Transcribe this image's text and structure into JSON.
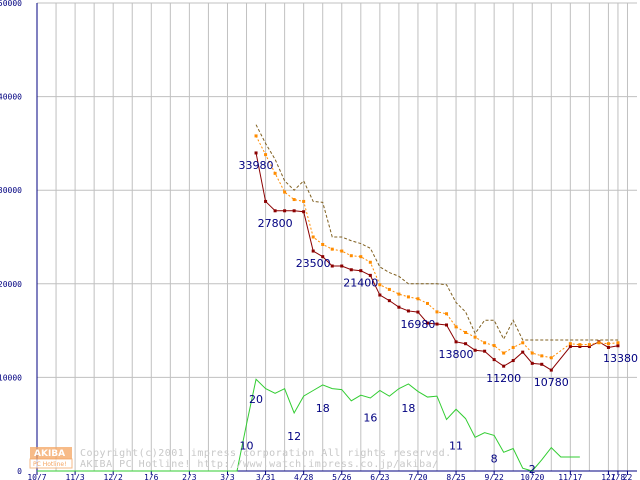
{
  "chart_data": {
    "type": "line",
    "ylim": [
      0,
      50000
    ],
    "yticks": [
      0,
      10000,
      20000,
      30000,
      40000,
      50000
    ],
    "ytick_labels": [
      "0",
      "10000",
      "20000",
      "30000",
      "40000",
      "50000"
    ],
    "xlim": [
      0,
      63
    ],
    "xticks": [
      0,
      4,
      8,
      12,
      16,
      20,
      24,
      28,
      32,
      36,
      40,
      44,
      48,
      52,
      56,
      60,
      61,
      62
    ],
    "xtick_labels": [
      "10/7",
      "11/3",
      "12/2",
      "1/6",
      "2/3",
      "3/3",
      "3/31",
      "4/28",
      "5/26",
      "6/23",
      "7/20",
      "8/25",
      "9/22",
      "10/20",
      "11/17",
      "12/",
      "1/8",
      "22"
    ],
    "grid": true,
    "series": [
      {
        "color": "#8b0000",
        "style": "solid-markers",
        "points": [
          [
            23,
            33980
          ],
          [
            24,
            28800
          ],
          [
            25,
            27800
          ],
          [
            26,
            27800
          ],
          [
            27,
            27800
          ],
          [
            28,
            27700
          ],
          [
            29,
            23500
          ],
          [
            30,
            22900
          ],
          [
            31,
            21900
          ],
          [
            32,
            21900
          ],
          [
            33,
            21500
          ],
          [
            34,
            21400
          ],
          [
            35,
            20900
          ],
          [
            36,
            18800
          ],
          [
            37,
            18200
          ],
          [
            38,
            17500
          ],
          [
            39,
            17100
          ],
          [
            40,
            16980
          ],
          [
            41,
            15800
          ],
          [
            42,
            15700
          ],
          [
            43,
            15600
          ],
          [
            44,
            13800
          ],
          [
            45,
            13600
          ],
          [
            46,
            12900
          ],
          [
            47,
            12800
          ],
          [
            48,
            11900
          ],
          [
            49,
            11200
          ],
          [
            50,
            11800
          ],
          [
            51,
            12700
          ],
          [
            52,
            11500
          ],
          [
            53,
            11400
          ],
          [
            54,
            10780
          ],
          [
            56,
            13300
          ],
          [
            57,
            13300
          ],
          [
            58,
            13300
          ],
          [
            59,
            13800
          ],
          [
            60,
            13200
          ],
          [
            61,
            13380
          ]
        ]
      },
      {
        "color": "#ff8c00",
        "style": "dotted-markers",
        "points": [
          [
            23,
            35800
          ],
          [
            24,
            33800
          ],
          [
            25,
            31800
          ],
          [
            26,
            29800
          ],
          [
            27,
            29000
          ],
          [
            28,
            28800
          ],
          [
            29,
            25000
          ],
          [
            30,
            24200
          ],
          [
            31,
            23700
          ],
          [
            32,
            23500
          ],
          [
            33,
            23000
          ],
          [
            34,
            22900
          ],
          [
            35,
            22300
          ],
          [
            36,
            19900
          ],
          [
            37,
            19400
          ],
          [
            38,
            18900
          ],
          [
            39,
            18600
          ],
          [
            40,
            18400
          ],
          [
            41,
            17900
          ],
          [
            42,
            17000
          ],
          [
            43,
            16800
          ],
          [
            44,
            15400
          ],
          [
            45,
            14800
          ],
          [
            46,
            14300
          ],
          [
            47,
            13700
          ],
          [
            48,
            13400
          ],
          [
            49,
            12600
          ],
          [
            50,
            13200
          ],
          [
            51,
            13700
          ],
          [
            52,
            12600
          ],
          [
            53,
            12300
          ],
          [
            54,
            12100
          ],
          [
            56,
            13600
          ],
          [
            57,
            13500
          ],
          [
            58,
            13500
          ],
          [
            59,
            13700
          ],
          [
            60,
            13600
          ],
          [
            61,
            13700
          ]
        ]
      },
      {
        "color": "#806020",
        "style": "dashed",
        "points": [
          [
            23,
            37000
          ],
          [
            24,
            35000
          ],
          [
            25,
            33300
          ],
          [
            26,
            31000
          ],
          [
            27,
            30000
          ],
          [
            28,
            31000
          ],
          [
            29,
            28800
          ],
          [
            30,
            28700
          ],
          [
            31,
            25000
          ],
          [
            32,
            25000
          ],
          [
            33,
            24600
          ],
          [
            34,
            24300
          ],
          [
            35,
            23800
          ],
          [
            36,
            21800
          ],
          [
            37,
            21200
          ],
          [
            38,
            20800
          ],
          [
            39,
            20000
          ],
          [
            40,
            20000
          ],
          [
            41,
            20000
          ],
          [
            42,
            20000
          ],
          [
            43,
            19900
          ],
          [
            44,
            18000
          ],
          [
            45,
            17000
          ],
          [
            46,
            14700
          ],
          [
            47,
            16100
          ],
          [
            48,
            16100
          ],
          [
            49,
            14100
          ],
          [
            50,
            16100
          ],
          [
            51,
            14000
          ],
          [
            52,
            14000
          ],
          [
            53,
            14000
          ],
          [
            54,
            14000
          ],
          [
            56,
            14000
          ],
          [
            57,
            14000
          ],
          [
            58,
            14000
          ],
          [
            59,
            14000
          ],
          [
            60,
            14000
          ],
          [
            61,
            14000
          ]
        ]
      },
      {
        "color": "#32cd32",
        "style": "solid",
        "points": [
          [
            0,
            0
          ],
          [
            21,
            0
          ],
          [
            22,
            5000
          ],
          [
            23,
            9800
          ],
          [
            24,
            8800
          ],
          [
            25,
            8300
          ],
          [
            26,
            8800
          ],
          [
            27,
            6200
          ],
          [
            28,
            8000
          ],
          [
            29,
            8600
          ],
          [
            30,
            9200
          ],
          [
            31,
            8800
          ],
          [
            32,
            8700
          ],
          [
            33,
            7500
          ],
          [
            34,
            8100
          ],
          [
            35,
            7800
          ],
          [
            36,
            8600
          ],
          [
            37,
            8000
          ],
          [
            38,
            8800
          ],
          [
            39,
            9300
          ],
          [
            40,
            8500
          ],
          [
            41,
            7900
          ],
          [
            42,
            8000
          ],
          [
            43,
            5500
          ],
          [
            44,
            6600
          ],
          [
            45,
            5600
          ],
          [
            46,
            3600
          ],
          [
            47,
            4100
          ],
          [
            48,
            3800
          ],
          [
            49,
            2000
          ],
          [
            50,
            2400
          ],
          [
            51,
            300
          ],
          [
            52,
            0
          ],
          [
            53,
            1200
          ],
          [
            54,
            2500
          ],
          [
            55,
            1500
          ],
          [
            56,
            1500
          ],
          [
            57,
            1500
          ]
        ]
      }
    ],
    "data_labels": [
      {
        "text": "33980",
        "x": 23,
        "y": 33980
      },
      {
        "text": "27800",
        "x": 25,
        "y": 27800
      },
      {
        "text": "23500",
        "x": 29,
        "y": 23500
      },
      {
        "text": "21400",
        "x": 34,
        "y": 21400
      },
      {
        "text": "16980",
        "x": 40,
        "y": 16980
      },
      {
        "text": "13800",
        "x": 44,
        "y": 13800
      },
      {
        "text": "11200",
        "x": 49,
        "y": 11200
      },
      {
        "text": "10780",
        "x": 54,
        "y": 10780
      },
      {
        "text": "13380",
        "x": 61,
        "y": 13380
      },
      {
        "text": "10",
        "x": 22,
        "y": 4000
      },
      {
        "text": "20",
        "x": 23,
        "y": 9000
      },
      {
        "text": "12",
        "x": 27,
        "y": 5000
      },
      {
        "text": "18",
        "x": 30,
        "y": 8000
      },
      {
        "text": "16",
        "x": 35,
        "y": 7000
      },
      {
        "text": "18",
        "x": 39,
        "y": 8000
      },
      {
        "text": "11",
        "x": 44,
        "y": 4000
      },
      {
        "text": "8",
        "x": 48,
        "y": 2600
      },
      {
        "text": "2",
        "x": 52,
        "y": 0
      }
    ]
  },
  "watermark": {
    "copyright": "Copyright(c)2001 impress corporation All rights reserved.",
    "hotline": "AKIBA PC Hotline!  http://www.watch.impress.co.jp/akiba/",
    "logo_top": "AKIBA",
    "logo_bottom": "PC Hotline!"
  },
  "colors": {
    "grid": "#c0c0c0",
    "axis": "#000080",
    "label": "#000080",
    "logo": "#f4a460"
  }
}
